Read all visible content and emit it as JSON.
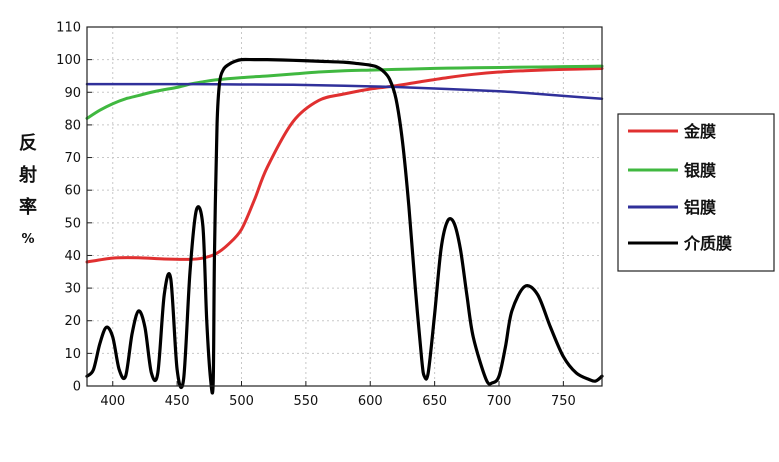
{
  "chart_data": {
    "type": "line",
    "ylabel_chars": [
      "反",
      "射",
      "率"
    ],
    "ylabel_unit": "%",
    "xlim": [
      380,
      780
    ],
    "ylim": [
      0,
      110
    ],
    "x_ticks": [
      400,
      450,
      500,
      550,
      600,
      650,
      700,
      750
    ],
    "y_ticks": [
      0,
      10,
      20,
      30,
      40,
      50,
      60,
      70,
      80,
      90,
      100,
      110
    ],
    "grid": true,
    "legend_position": "right",
    "series": [
      {
        "name": "金膜",
        "color": "#e03030",
        "x": [
          380,
          400,
          420,
          440,
          460,
          470,
          480,
          490,
          500,
          510,
          520,
          540,
          560,
          580,
          600,
          620,
          640,
          660,
          680,
          700,
          720,
          740,
          760,
          780
        ],
        "y": [
          38,
          39.2,
          39.3,
          38.9,
          38.8,
          39.2,
          40.5,
          43.5,
          48,
          57,
          67,
          81,
          87.5,
          89.5,
          91,
          92,
          93.3,
          94.5,
          95.5,
          96.2,
          96.6,
          96.9,
          97.1,
          97.3
        ]
      },
      {
        "name": "银膜",
        "color": "#40b840",
        "x": [
          380,
          390,
          400,
          410,
          420,
          430,
          440,
          450,
          460,
          470,
          480,
          500,
          520,
          540,
          560,
          580,
          600,
          620,
          640,
          660,
          680,
          700,
          720,
          740,
          760,
          780
        ],
        "y": [
          82,
          84.5,
          86.5,
          88,
          89,
          90,
          90.8,
          91.5,
          92.5,
          93.2,
          93.8,
          94.5,
          95,
          95.6,
          96.2,
          96.6,
          96.8,
          97,
          97.2,
          97.4,
          97.5,
          97.6,
          97.7,
          97.8,
          97.9,
          98
        ]
      },
      {
        "name": "铝膜",
        "color": "#30309a",
        "x": [
          380,
          420,
          460,
          500,
          540,
          580,
          620,
          660,
          700,
          720,
          740,
          760,
          780
        ],
        "y": [
          92.5,
          92.5,
          92.5,
          92.4,
          92.3,
          92.0,
          91.6,
          91.0,
          90.3,
          89.8,
          89.2,
          88.6,
          88
        ]
      },
      {
        "name": "介质膜",
        "color": "#000000",
        "x": [
          380,
          385,
          390,
          395,
          400,
          405,
          410,
          415,
          420,
          425,
          430,
          435,
          440,
          445,
          450,
          455,
          460,
          465,
          470,
          473,
          476,
          478,
          479,
          481,
          483,
          486,
          490,
          495,
          500,
          510,
          520,
          540,
          560,
          580,
          590,
          600,
          605,
          610,
          615,
          620,
          625,
          630,
          635,
          640,
          642,
          645,
          650,
          655,
          660,
          665,
          670,
          675,
          680,
          690,
          695,
          700,
          705,
          710,
          720,
          730,
          740,
          750,
          760,
          770,
          775,
          780
        ],
        "y": [
          3,
          5,
          13,
          18,
          15,
          5,
          3,
          16,
          23,
          18,
          4,
          4,
          28,
          33,
          5,
          2,
          35,
          54,
          49,
          20,
          2,
          1,
          40,
          80,
          93,
          97,
          98.5,
          99.5,
          100,
          100,
          100,
          99.8,
          99.5,
          99.2,
          98.8,
          98.3,
          97.8,
          96.5,
          94,
          88,
          75,
          55,
          30,
          8,
          3,
          4,
          22,
          42,
          50.5,
          50,
          42,
          28,
          15,
          2,
          1,
          3,
          12,
          23,
          30.5,
          28,
          18,
          9,
          4,
          2,
          1.5,
          3
        ]
      }
    ]
  }
}
